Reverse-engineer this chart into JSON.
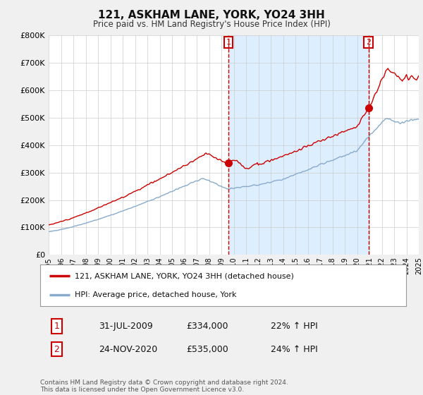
{
  "title": "121, ASKHAM LANE, YORK, YO24 3HH",
  "subtitle": "Price paid vs. HM Land Registry's House Price Index (HPI)",
  "ylim": [
    0,
    800000
  ],
  "xlim_start": 1995.0,
  "xlim_end": 2025.0,
  "sale1_date": 2009.58,
  "sale1_price": 334000,
  "sale2_date": 2020.92,
  "sale2_price": 535000,
  "legend_line1": "121, ASKHAM LANE, YORK, YO24 3HH (detached house)",
  "legend_line2": "HPI: Average price, detached house, York",
  "footer": "Contains HM Land Registry data © Crown copyright and database right 2024.\nThis data is licensed under the Open Government Licence v3.0.",
  "line_color_red": "#cc0000",
  "line_color_blue": "#88aacc",
  "shade_color": "#ddeeff",
  "vline_color": "#cc0000",
  "bg_color": "#f0f0f0",
  "plot_bg_color": "#ffffff",
  "annotation_box_color": "#cc0000",
  "table_row1": [
    "1",
    "31-JUL-2009",
    "£334,000",
    "22% ↑ HPI"
  ],
  "table_row2": [
    "2",
    "24-NOV-2020",
    "£535,000",
    "24% ↑ HPI"
  ]
}
